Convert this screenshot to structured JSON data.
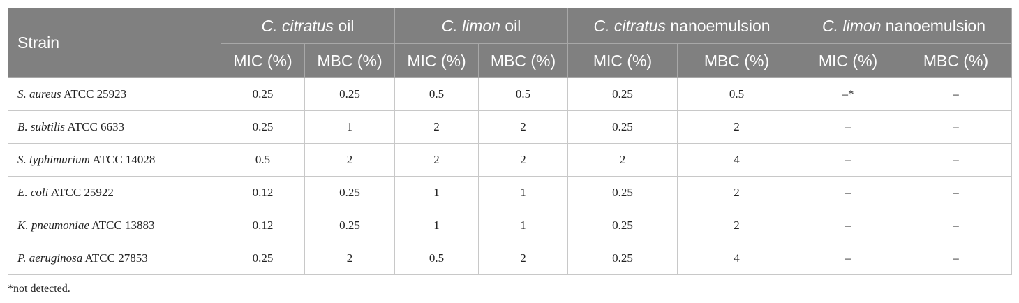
{
  "header": {
    "strain": "Strain",
    "groups": [
      {
        "species": "C. citratus",
        "suffix": " oil"
      },
      {
        "species": "C. limon",
        "suffix": " oil"
      },
      {
        "species": "C. citratus",
        "suffix": " nanoemulsion"
      },
      {
        "species": "C. limon",
        "suffix": " nanoemulsion"
      }
    ],
    "sub": [
      "MIC (%)",
      "MBC (%)",
      "MIC (%)",
      "MBC (%)",
      "MIC (%)",
      "MBC (%)",
      "MIC (%)",
      "MBC (%)"
    ]
  },
  "rows": [
    {
      "species": "S. aureus",
      "strain": " ATCC 25923",
      "values": [
        "0.25",
        "0.25",
        "0.5",
        "0.5",
        "0.25",
        "0.5",
        "–*",
        "–"
      ]
    },
    {
      "species": "B. subtilis",
      "strain": " ATCC 6633",
      "values": [
        "0.25",
        "1",
        "2",
        "2",
        "0.25",
        "2",
        "–",
        "–"
      ]
    },
    {
      "species": "S. typhimurium",
      "strain": " ATCC 14028",
      "values": [
        "0.5",
        "2",
        "2",
        "2",
        "2",
        "4",
        "–",
        "–"
      ]
    },
    {
      "species": "E. coli",
      "strain": " ATCC 25922",
      "values": [
        "0.12",
        "0.25",
        "1",
        "1",
        "0.25",
        "2",
        "–",
        "–"
      ]
    },
    {
      "species": "K. pneumoniae",
      "strain": " ATCC 13883",
      "values": [
        "0.12",
        "0.25",
        "1",
        "1",
        "0.25",
        "2",
        "–",
        "–"
      ]
    },
    {
      "species": "P. aeruginosa",
      "strain": " ATCC 27853",
      "values": [
        "0.25",
        "2",
        "0.5",
        "2",
        "0.25",
        "4",
        "–",
        "–"
      ]
    }
  ],
  "footnote": "*not detected.",
  "colors": {
    "header_bg": "#808080",
    "header_text": "#ffffff",
    "border": "#c8c8c8"
  }
}
